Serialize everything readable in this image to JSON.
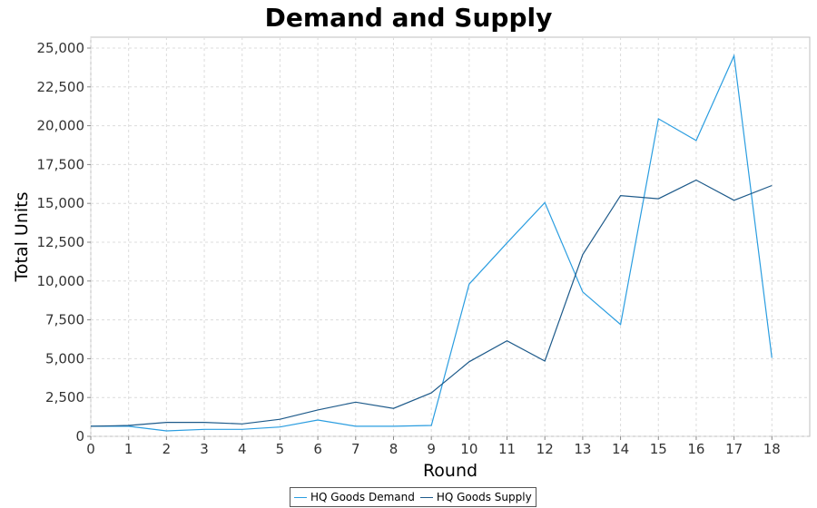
{
  "chart_data": {
    "type": "line",
    "title": "Demand and Supply",
    "xlabel": "Round",
    "ylabel": "Total Units",
    "x": [
      0,
      1,
      2,
      3,
      4,
      5,
      6,
      7,
      8,
      9,
      10,
      11,
      12,
      13,
      14,
      15,
      16,
      17,
      18
    ],
    "xlim": [
      0,
      19
    ],
    "ylim": [
      0,
      25700
    ],
    "y_ticks": [
      0,
      2500,
      5000,
      7500,
      10000,
      12500,
      15000,
      17500,
      20000,
      22500,
      25000
    ],
    "y_tick_labels": [
      "0",
      "2,500",
      "5,000",
      "7,500",
      "10,000",
      "12,500",
      "15,000",
      "17,500",
      "20,000",
      "22,500",
      "25,000"
    ],
    "grid": true,
    "legend_position": "bottom-center",
    "series": [
      {
        "name": "HQ Goods Demand",
        "color": "#2a9de0",
        "values": [
          650,
          650,
          350,
          450,
          450,
          600,
          1050,
          650,
          650,
          700,
          9800,
          12450,
          15050,
          9300,
          7200,
          20450,
          19050,
          24500,
          5050
        ]
      },
      {
        "name": "HQ Goods Supply",
        "color": "#1d5a8a",
        "values": [
          650,
          700,
          900,
          900,
          800,
          1100,
          1700,
          2200,
          1800,
          2800,
          4800,
          6150,
          4850,
          11700,
          15500,
          15300,
          16500,
          15200,
          16150
        ]
      }
    ]
  }
}
